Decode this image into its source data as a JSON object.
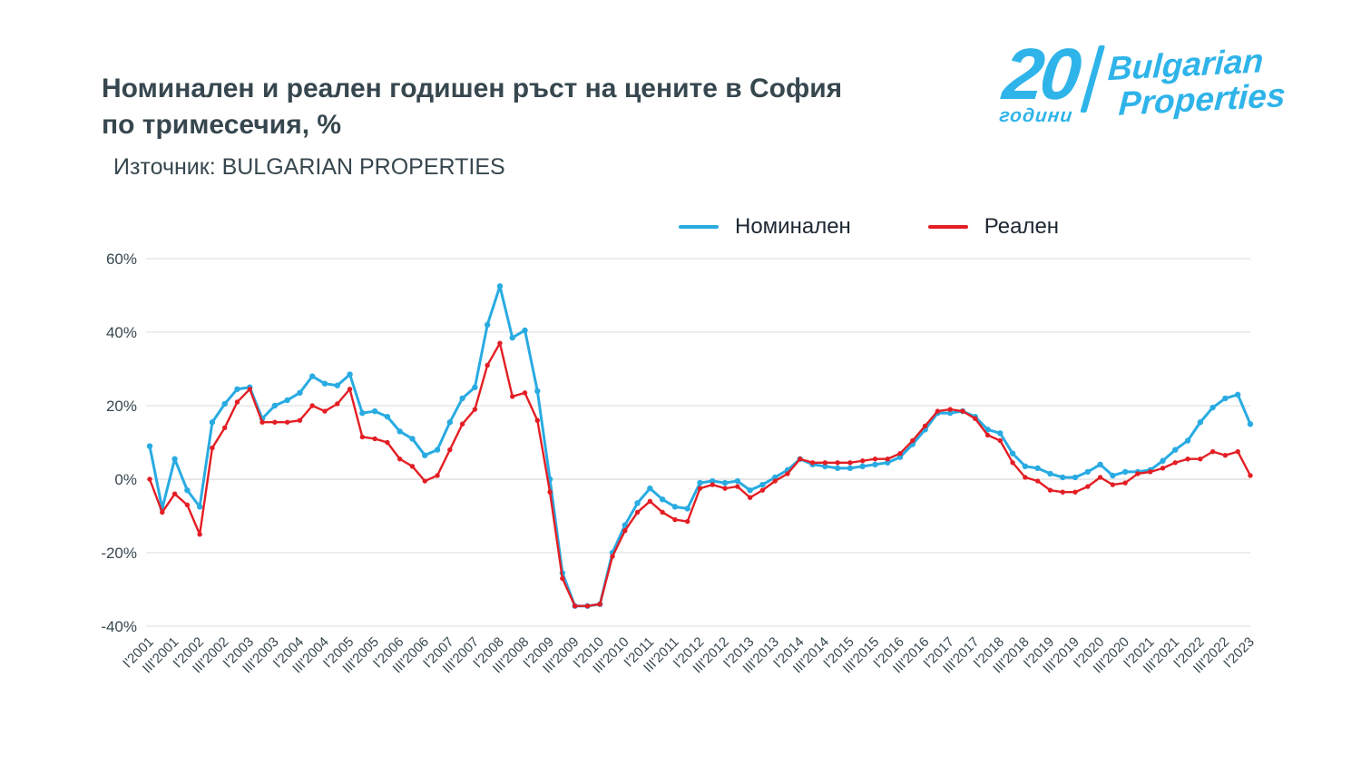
{
  "header": {
    "title_line1": "Номинален и реален годишен ръст на цените в София",
    "title_line2": "по тримесечия, %",
    "source": "Източник: BULGARIAN PROPERTIES"
  },
  "logo": {
    "number": "20",
    "years": "години",
    "brand_line1": "Bulgarian",
    "brand_line2": "Properties",
    "color": "#2FB4E9"
  },
  "legend": [
    {
      "label": "Номинален",
      "color": "#29ABE2"
    },
    {
      "label": "Реален",
      "color": "#E31E24"
    }
  ],
  "chart_data": {
    "type": "line",
    "title": "Номинален и реален годишен ръст на цените в София по тримесечия, %",
    "source": "Източник: BULGARIAN PROPERTIES",
    "xlabel": "",
    "ylabel": "",
    "ylim": [
      -40,
      60
    ],
    "yticks": [
      60,
      40,
      20,
      0,
      -20,
      -40
    ],
    "ytick_format": "percent",
    "grid": "horizontal",
    "legend_position": "top",
    "xtick_every": 2,
    "x": [
      "I'2001",
      "II'2001",
      "III'2001",
      "IV'2001",
      "I'2002",
      "II'2002",
      "III'2002",
      "IV'2002",
      "I'2003",
      "II'2003",
      "III'2003",
      "IV'2003",
      "I'2004",
      "II'2004",
      "III'2004",
      "IV'2004",
      "I'2005",
      "II'2005",
      "III'2005",
      "IV'2005",
      "I'2006",
      "II'2006",
      "III'2006",
      "IV'2006",
      "I'2007",
      "II'2007",
      "III'2007",
      "IV'2007",
      "I'2008",
      "II'2008",
      "III'2008",
      "IV'2008",
      "I'2009",
      "II'2009",
      "III'2009",
      "IV'2009",
      "I'2010",
      "II'2010",
      "III'2010",
      "IV'2010",
      "I'2011",
      "II'2011",
      "III'2011",
      "IV'2011",
      "I'2012",
      "II'2012",
      "III'2012",
      "IV'2012",
      "I'2013",
      "II'2013",
      "III'2013",
      "IV'2013",
      "I'2014",
      "II'2014",
      "III'2014",
      "IV'2014",
      "I'2015",
      "II'2015",
      "III'2015",
      "IV'2015",
      "I'2016",
      "II'2016",
      "III'2016",
      "IV'2016",
      "I'2017",
      "II'2017",
      "III'2017",
      "IV'2017",
      "I'2018",
      "II'2018",
      "III'2018",
      "IV'2018",
      "I'2019",
      "II'2019",
      "III'2019",
      "IV'2019",
      "I'2020",
      "II'2020",
      "III'2020",
      "IV'2020",
      "I'2021",
      "II'2021",
      "III'2021",
      "IV'2021",
      "I'2022",
      "II'2022",
      "III'2022",
      "IV'2022",
      "I'2023"
    ],
    "series": [
      {
        "name": "Номинален",
        "color": "#29ABE2",
        "values": [
          9,
          -8,
          5.5,
          -3,
          -7.5,
          15.5,
          20.5,
          24.5,
          25,
          16.5,
          20,
          21.5,
          23.5,
          28,
          26,
          25.5,
          28.5,
          18,
          18.5,
          17,
          13,
          11,
          6.5,
          8,
          15.5,
          22,
          25,
          42,
          52.5,
          38.5,
          40.5,
          24,
          0,
          -25.5,
          -34.5,
          -34.5,
          -34,
          -20,
          -12.5,
          -6.5,
          -2.5,
          -5.5,
          -7.5,
          -8,
          -1,
          -0.5,
          -1,
          -0.5,
          -3,
          -1.5,
          0.5,
          2.5,
          5.5,
          4,
          3.5,
          3,
          3,
          3.5,
          4,
          4.5,
          6,
          9.5,
          13.5,
          18,
          18,
          18.5,
          17,
          13.5,
          12.5,
          7,
          3.5,
          3,
          1.5,
          0.5,
          0.5,
          2,
          4,
          1,
          2,
          2,
          2.5,
          5,
          8,
          10.5,
          15.5,
          19.5,
          22,
          23,
          15
        ]
      },
      {
        "name": "Реален",
        "color": "#E31E24",
        "values": [
          0,
          -9,
          -4,
          -7,
          -15,
          8.5,
          14,
          21,
          24.5,
          15.5,
          15.5,
          15.5,
          16,
          20,
          18.5,
          20.5,
          24.5,
          11.5,
          11,
          10,
          5.5,
          3.5,
          -0.5,
          1,
          8,
          15,
          19,
          31,
          37,
          22.5,
          23.5,
          16,
          -3.5,
          -27,
          -34.5,
          -34.5,
          -34,
          -21,
          -14,
          -9,
          -6,
          -9,
          -11,
          -11.5,
          -2.5,
          -1.5,
          -2.5,
          -2,
          -5,
          -3,
          -0.5,
          1.5,
          5.5,
          4.5,
          4.5,
          4.5,
          4.5,
          5,
          5.5,
          5.5,
          7,
          10.5,
          14.5,
          18.5,
          19,
          18.5,
          16.5,
          12,
          10.5,
          4.5,
          0.5,
          -0.5,
          -3,
          -3.5,
          -3.5,
          -2,
          0.5,
          -1.5,
          -1,
          1.5,
          2,
          3,
          4.5,
          5.5,
          5.5,
          7.5,
          6.5,
          7.5,
          1
        ]
      }
    ]
  }
}
